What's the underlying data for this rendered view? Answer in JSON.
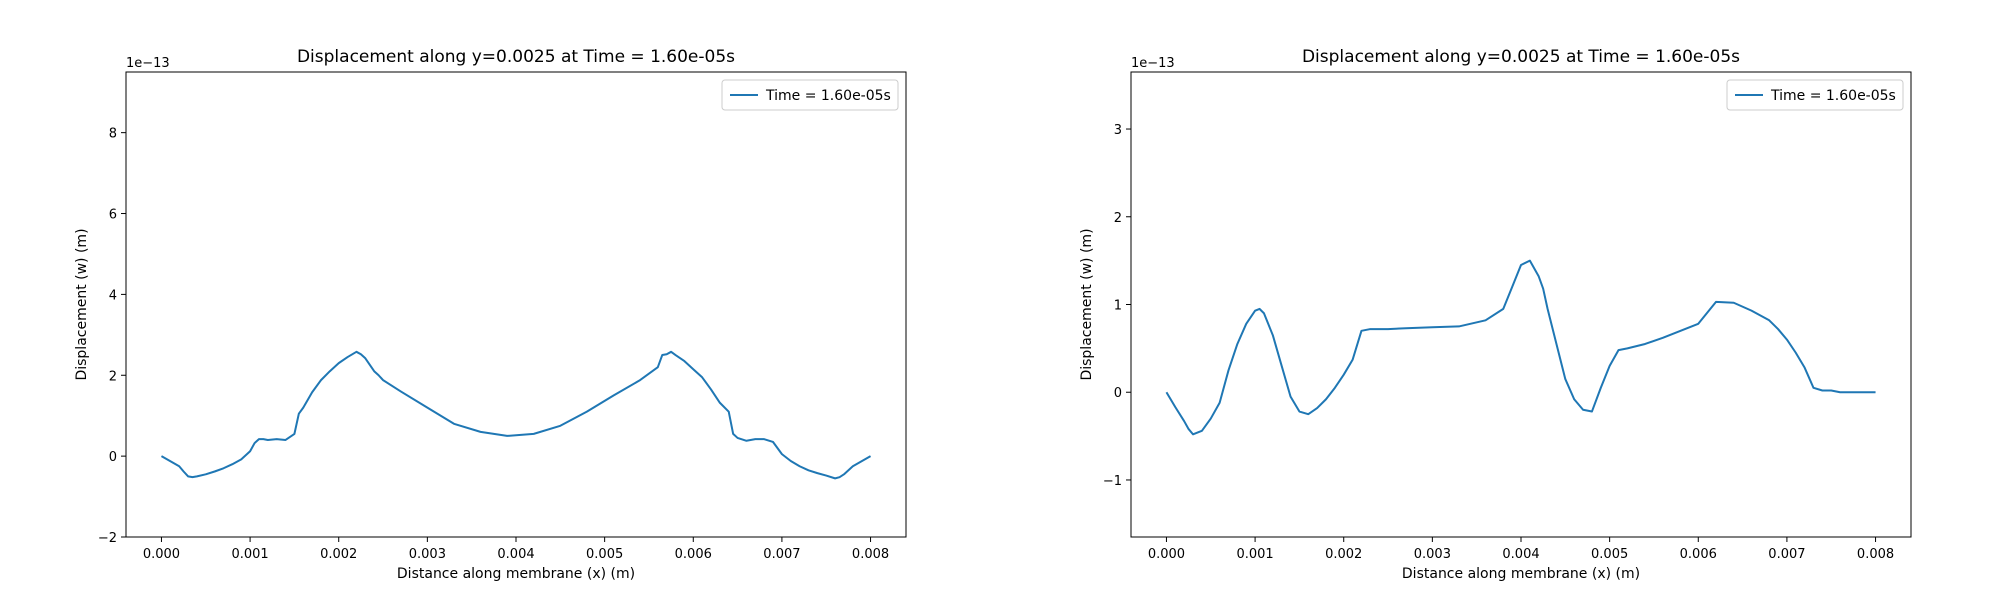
{
  "chart_data": [
    {
      "type": "line",
      "title": "Displacement along y=0.0025 at Time = 1.60e-05s",
      "xlabel": "Distance along membrane (x) (m)",
      "ylabel": "Displacement (w) (m)",
      "y_multiplier": "1e−13",
      "xlim": [
        -0.0004,
        0.0084
      ],
      "ylim": [
        -2.0,
        9.5
      ],
      "xticks": [
        0.0,
        0.001,
        0.002,
        0.003,
        0.004,
        0.005,
        0.006,
        0.007,
        0.008
      ],
      "xtick_labels": [
        "0.000",
        "0.001",
        "0.002",
        "0.003",
        "0.004",
        "0.005",
        "0.006",
        "0.007",
        "0.008"
      ],
      "yticks": [
        -2,
        0,
        2,
        4,
        6,
        8
      ],
      "ytick_labels": [
        "−2",
        "0",
        "2",
        "4",
        "6",
        "8"
      ],
      "grid": false,
      "legend_position": "top-right",
      "series": [
        {
          "name": "Time = 1.60e-05s",
          "color": "#1f77b4",
          "x": [
            0.0,
            0.0002,
            0.00025,
            0.0003,
            0.00035,
            0.0004,
            0.0005,
            0.0006,
            0.0007,
            0.0008,
            0.0009,
            0.001,
            0.00105,
            0.0011,
            0.00115,
            0.0012,
            0.0013,
            0.0014,
            0.0015,
            0.00155,
            0.0016,
            0.0017,
            0.0018,
            0.0019,
            0.002,
            0.0021,
            0.0022,
            0.00225,
            0.0023,
            0.0024,
            0.00245,
            0.0025,
            0.0027,
            0.003,
            0.0033,
            0.0036,
            0.0039,
            0.0042,
            0.0045,
            0.0048,
            0.0051,
            0.0054,
            0.0056,
            0.00565,
            0.0057,
            0.00575,
            0.0058,
            0.0059,
            0.006,
            0.0061,
            0.0062,
            0.0063,
            0.0064,
            0.00645,
            0.0065,
            0.0066,
            0.0067,
            0.0068,
            0.0069,
            0.007,
            0.0071,
            0.0072,
            0.0073,
            0.0074,
            0.0075,
            0.0076,
            0.00765,
            0.0077,
            0.0078,
            0.008
          ],
          "values": [
            0.0,
            -0.25,
            -0.38,
            -0.5,
            -0.52,
            -0.5,
            -0.45,
            -0.38,
            -0.3,
            -0.2,
            -0.08,
            0.12,
            0.32,
            0.42,
            0.42,
            0.4,
            0.42,
            0.4,
            0.55,
            1.05,
            1.2,
            1.58,
            1.88,
            2.1,
            2.3,
            2.45,
            2.58,
            2.52,
            2.42,
            2.1,
            2.0,
            1.88,
            1.6,
            1.2,
            0.8,
            0.6,
            0.5,
            0.55,
            0.75,
            1.1,
            1.5,
            1.88,
            2.2,
            2.5,
            2.52,
            2.58,
            2.5,
            2.35,
            2.15,
            1.95,
            1.65,
            1.32,
            1.1,
            0.55,
            0.45,
            0.38,
            0.42,
            0.42,
            0.35,
            0.05,
            -0.12,
            -0.25,
            -0.35,
            -0.42,
            -0.48,
            -0.55,
            -0.52,
            -0.45,
            -0.25,
            0.0
          ]
        }
      ]
    },
    {
      "type": "line",
      "title": "Displacement along y=0.0025 at Time = 1.60e-05s",
      "xlabel": "Distance along membrane (x) (m)",
      "ylabel": "Displacement (w) (m)",
      "y_multiplier": "1e−13",
      "xlim": [
        -0.0004,
        0.0084
      ],
      "ylim": [
        -1.65,
        3.65
      ],
      "xticks": [
        0.0,
        0.001,
        0.002,
        0.003,
        0.004,
        0.005,
        0.006,
        0.007,
        0.008
      ],
      "xtick_labels": [
        "0.000",
        "0.001",
        "0.002",
        "0.003",
        "0.004",
        "0.005",
        "0.006",
        "0.007",
        "0.008"
      ],
      "yticks": [
        -1,
        0,
        1,
        2,
        3
      ],
      "ytick_labels": [
        "−1",
        "0",
        "1",
        "2",
        "3"
      ],
      "grid": false,
      "legend_position": "top-right",
      "series": [
        {
          "name": "Time = 1.60e-05s",
          "color": "#1f77b4",
          "x": [
            0.0,
            0.0001,
            0.0002,
            0.00025,
            0.0003,
            0.0004,
            0.0005,
            0.0006,
            0.0007,
            0.0008,
            0.0009,
            0.001,
            0.00105,
            0.0011,
            0.0012,
            0.0013,
            0.0014,
            0.0015,
            0.0016,
            0.0017,
            0.0018,
            0.0019,
            0.002,
            0.0021,
            0.0022,
            0.0023,
            0.0024,
            0.0025,
            0.0027,
            0.003,
            0.0033,
            0.0036,
            0.0038,
            0.0039,
            0.004,
            0.0041,
            0.0042,
            0.00425,
            0.0043,
            0.0044,
            0.0045,
            0.0046,
            0.0047,
            0.0048,
            0.0049,
            0.005,
            0.0051,
            0.0052,
            0.0054,
            0.0056,
            0.0058,
            0.006,
            0.0062,
            0.0064,
            0.0066,
            0.0068,
            0.0069,
            0.007,
            0.0071,
            0.0072,
            0.0073,
            0.0074,
            0.0075,
            0.0076,
            0.0077,
            0.0078,
            0.0079,
            0.008
          ],
          "values": [
            0.0,
            -0.17,
            -0.33,
            -0.42,
            -0.48,
            -0.44,
            -0.3,
            -0.12,
            0.25,
            0.55,
            0.78,
            0.93,
            0.95,
            0.9,
            0.65,
            0.3,
            -0.05,
            -0.22,
            -0.25,
            -0.18,
            -0.08,
            0.05,
            0.2,
            0.37,
            0.7,
            0.72,
            0.72,
            0.72,
            0.73,
            0.74,
            0.75,
            0.82,
            0.95,
            1.2,
            1.45,
            1.5,
            1.32,
            1.18,
            0.95,
            0.55,
            0.15,
            -0.08,
            -0.2,
            -0.22,
            0.05,
            0.3,
            0.48,
            0.5,
            0.55,
            0.62,
            0.7,
            0.78,
            1.03,
            1.02,
            0.93,
            0.82,
            0.72,
            0.6,
            0.45,
            0.28,
            0.05,
            0.02,
            0.02,
            0.0,
            0.0,
            0.0,
            0.0,
            0.0
          ]
        }
      ]
    }
  ]
}
